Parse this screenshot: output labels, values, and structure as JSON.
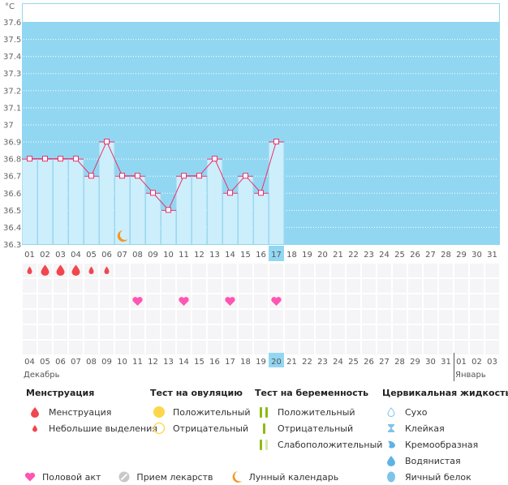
{
  "chart_data": {
    "type": "bar",
    "title": "",
    "ylabel": "°C",
    "xlabel": "",
    "ylim": [
      36.3,
      37.6
    ],
    "yticks": [
      "37.6",
      "37.5",
      "37.4",
      "37.3",
      "37.2",
      "37.1",
      "37",
      "36.9",
      "36.8",
      "36.7",
      "36.6",
      "36.5",
      "36.4",
      "36.3"
    ],
    "grid": true,
    "categories": [
      "01",
      "02",
      "03",
      "04",
      "05",
      "06",
      "07",
      "08",
      "09",
      "10",
      "11",
      "12",
      "13",
      "14",
      "15",
      "16",
      "17",
      "18",
      "19",
      "20",
      "21",
      "22",
      "23",
      "24",
      "25",
      "26",
      "27",
      "28",
      "29",
      "30",
      "31"
    ],
    "values": [
      36.8,
      36.8,
      36.8,
      36.8,
      36.7,
      36.9,
      36.7,
      36.7,
      36.6,
      36.5,
      36.7,
      36.7,
      36.8,
      36.6,
      36.7,
      36.6,
      36.9,
      null,
      null,
      null,
      null,
      null,
      null,
      null,
      null,
      null,
      null,
      null,
      null,
      null,
      null
    ],
    "current_day": "17",
    "moon_day": "07",
    "menstruation": {
      "01": "spotting",
      "02": "heavy",
      "03": "heavy",
      "04": "heavy",
      "05": "spotting",
      "06": "spotting"
    },
    "intercourse_days": [
      "08",
      "11",
      "14",
      "17"
    ],
    "dates": [
      {
        "label": "04",
        "weekend": false
      },
      {
        "label": "05",
        "weekend": false
      },
      {
        "label": "06",
        "weekend": false
      },
      {
        "label": "07",
        "weekend": false
      },
      {
        "label": "08",
        "weekend": false
      },
      {
        "label": "09",
        "weekend": true
      },
      {
        "label": "10",
        "weekend": true
      },
      {
        "label": "11",
        "weekend": false
      },
      {
        "label": "12",
        "weekend": false
      },
      {
        "label": "13",
        "weekend": false
      },
      {
        "label": "14",
        "weekend": false
      },
      {
        "label": "15",
        "weekend": false
      },
      {
        "label": "16",
        "weekend": true
      },
      {
        "label": "17",
        "weekend": true
      },
      {
        "label": "18",
        "weekend": false
      },
      {
        "label": "19",
        "weekend": false
      },
      {
        "label": "20",
        "weekend": false,
        "today": true
      },
      {
        "label": "21",
        "weekend": false
      },
      {
        "label": "22",
        "weekend": false
      },
      {
        "label": "23",
        "weekend": true
      },
      {
        "label": "24",
        "weekend": true
      },
      {
        "label": "25",
        "weekend": false
      },
      {
        "label": "26",
        "weekend": false
      },
      {
        "label": "27",
        "weekend": false
      },
      {
        "label": "28",
        "weekend": false
      },
      {
        "label": "29",
        "weekend": false
      },
      {
        "label": "30",
        "weekend": true
      },
      {
        "label": "31",
        "weekend": true
      },
      {
        "label": "01",
        "weekend": false
      },
      {
        "label": "02",
        "weekend": false
      },
      {
        "label": "03",
        "weekend": false
      }
    ],
    "months": [
      {
        "label": "Декабрь",
        "start_index": 0
      },
      {
        "label": "Январь",
        "start_index": 28
      }
    ]
  },
  "colors": {
    "chart_bg": "#92d7f2",
    "bar_fill": "#cdeefb",
    "line": "#e8316d",
    "highlight": "#92d7f2",
    "weekend": "#e8316d",
    "menstruation": "#f0474f",
    "heart": "#ff55b4",
    "moon": "#f5961e"
  },
  "legend": {
    "menstruation": {
      "title": "Менструация",
      "items": [
        {
          "icon": "drop-large-icon",
          "label": "Менструация"
        },
        {
          "icon": "drop-small-icon",
          "label": "Небольшие выделения"
        }
      ]
    },
    "ovulation": {
      "title": "Тест на овуляцию",
      "items": [
        {
          "icon": "circle-filled-icon",
          "label": "Положительный"
        },
        {
          "icon": "circle-outline-icon",
          "label": "Отрицательный"
        }
      ]
    },
    "pregnancy": {
      "title": "Тест на беременность",
      "items": [
        {
          "icon": "double-bar-icon",
          "label": "Положительный"
        },
        {
          "icon": "single-bar-icon",
          "label": "Отрицательный"
        },
        {
          "icon": "faint-double-bar-icon",
          "label": "Слабоположительный"
        }
      ]
    },
    "cervical": {
      "title": "Цервикальная жидкость",
      "items": [
        {
          "icon": "dry-icon",
          "label": "Сухо"
        },
        {
          "icon": "sticky-icon",
          "label": "Клейкая"
        },
        {
          "icon": "creamy-icon",
          "label": "Кремообразная"
        },
        {
          "icon": "watery-icon",
          "label": "Водянистая"
        },
        {
          "icon": "egg-white-icon",
          "label": "Яичный белок"
        }
      ]
    },
    "bottom": [
      {
        "icon": "heart-icon",
        "label": "Половой акт"
      },
      {
        "icon": "pill-icon",
        "label": "Прием лекарств"
      },
      {
        "icon": "moon-icon",
        "label": "Лунный календарь"
      }
    ]
  }
}
